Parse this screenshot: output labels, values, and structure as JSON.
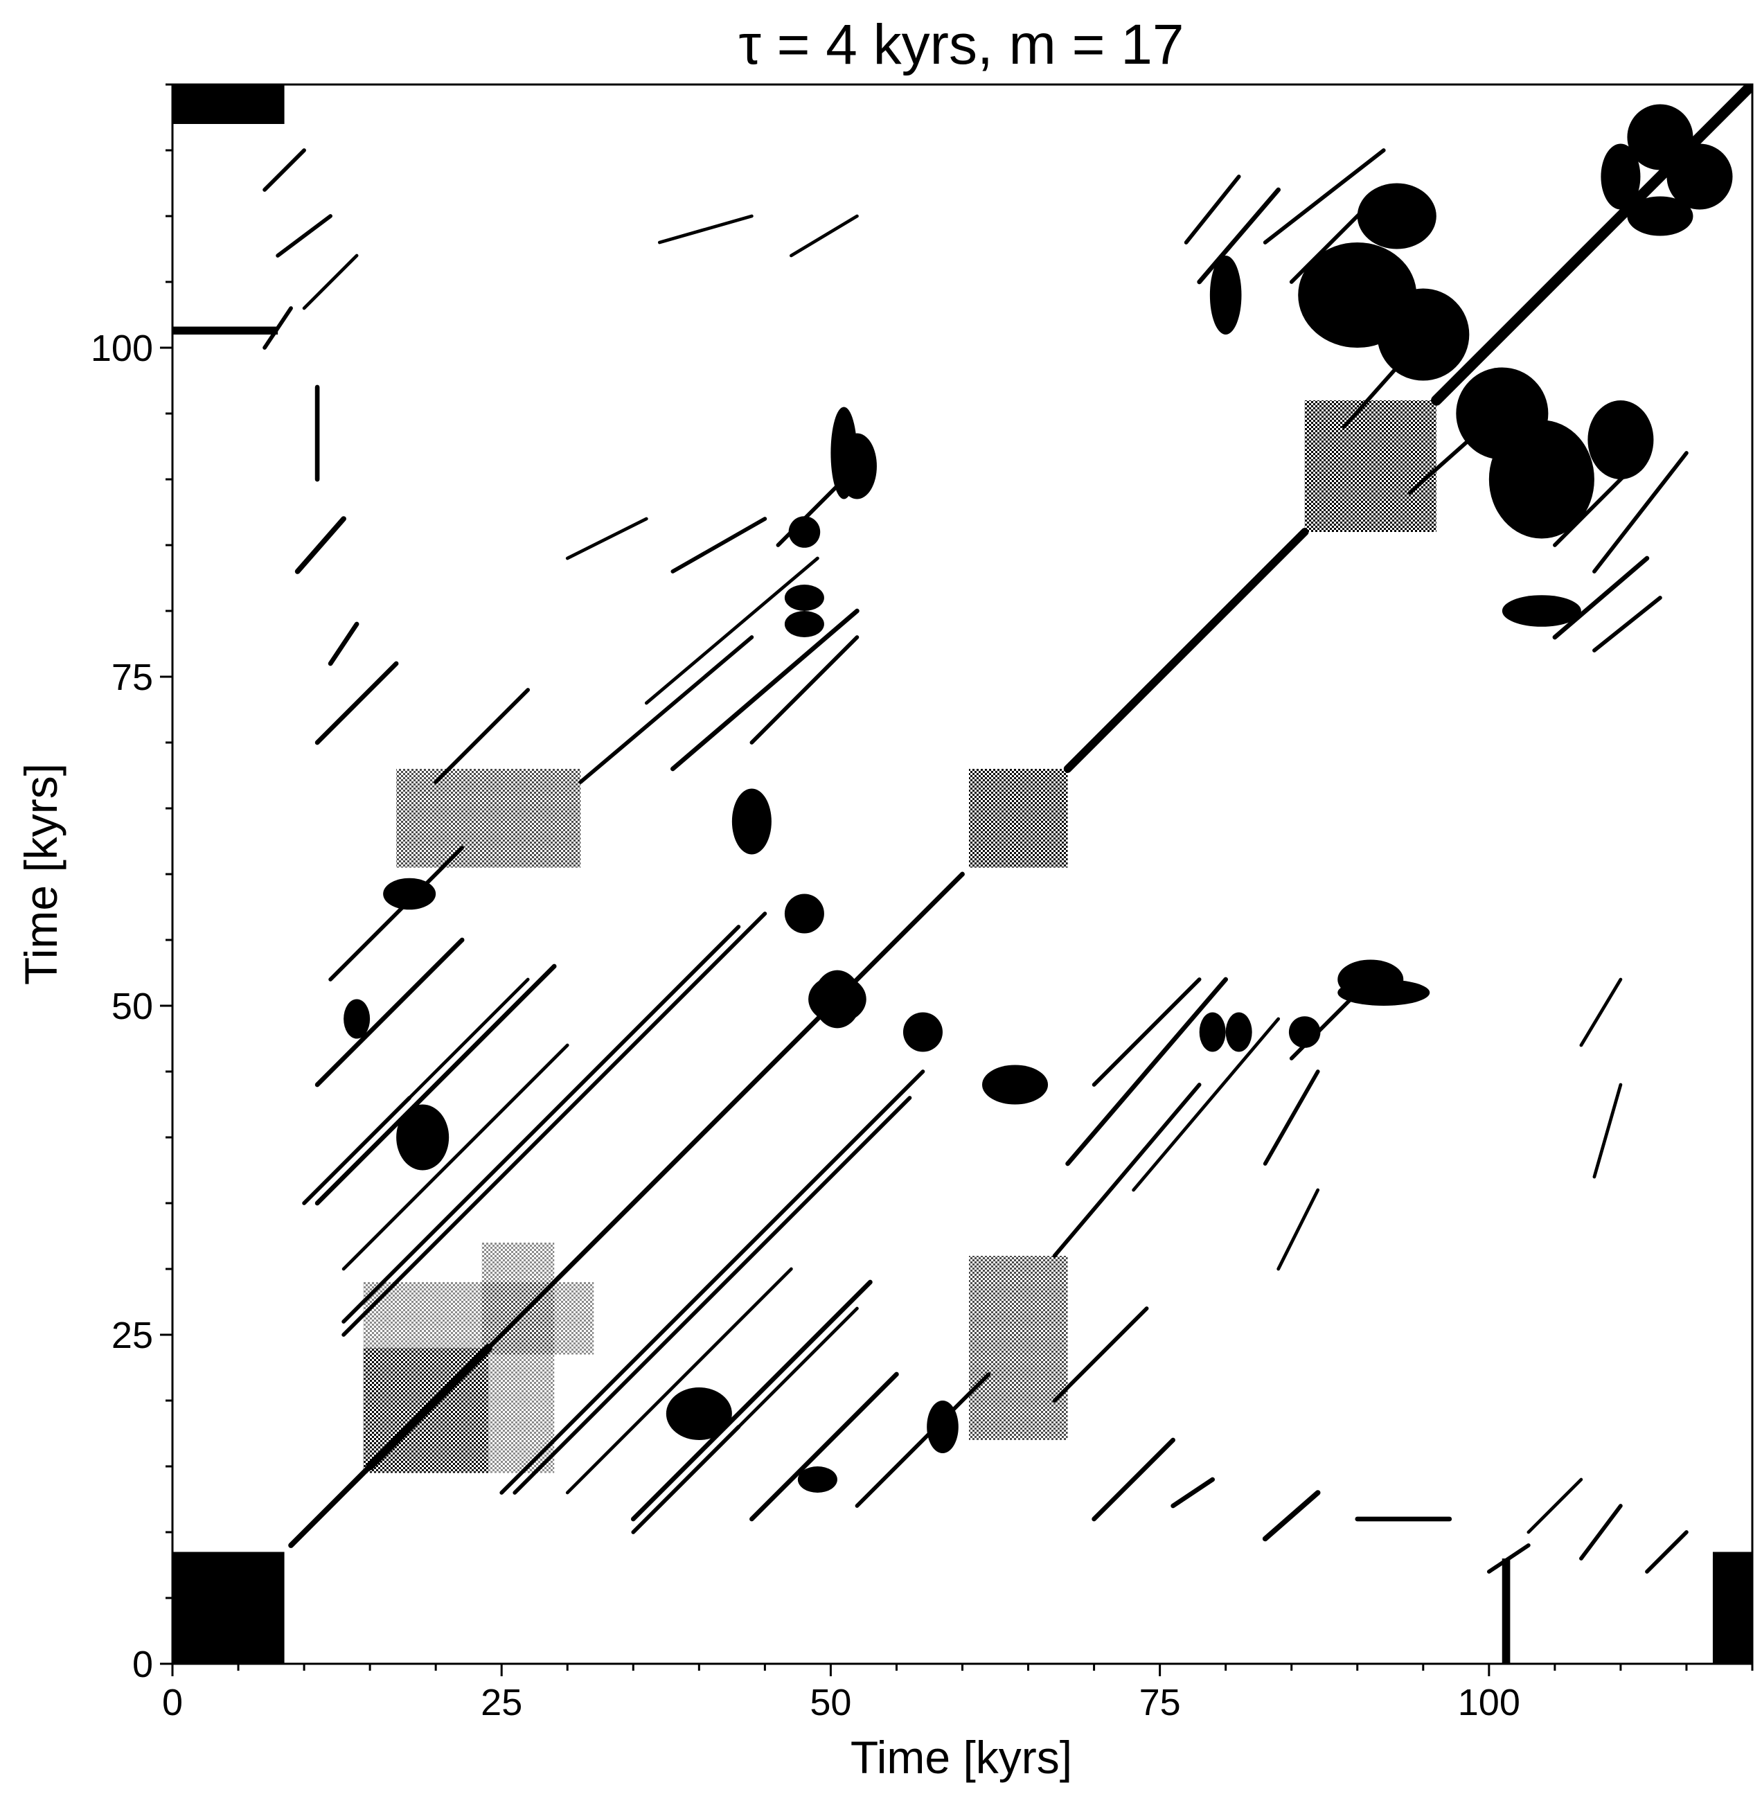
{
  "chart_data": {
    "type": "heatmap",
    "subtype": "recurrence-plot",
    "title": "τ = 4 kyrs, m = 17",
    "xlabel": "Time [kyrs]",
    "ylabel": "Time [kyrs]",
    "xlim": [
      0,
      120
    ],
    "ylim": [
      0,
      120
    ],
    "x_ticks": [
      0,
      25,
      50,
      75,
      100
    ],
    "y_ticks": [
      0,
      25,
      50,
      75,
      100
    ],
    "x_tick_labels": [
      "0",
      "25",
      "50",
      "75",
      "100"
    ],
    "y_tick_labels": [
      "0",
      "25",
      "50",
      "75",
      "100"
    ],
    "minor_tick_step": 5,
    "grid": false,
    "colormap": "binary",
    "colors": {
      "recurrence": "#000000",
      "background": "#ffffff"
    },
    "symmetric": true,
    "recurrent_blocks": [
      {
        "x": [
          0,
          8.5
        ],
        "y": [
          0,
          8.5
        ]
      },
      {
        "x": [
          14.5,
          24
        ],
        "y": [
          14.5,
          24
        ],
        "density": 0.85
      },
      {
        "x": [
          23.5,
          29
        ],
        "y": [
          14.5,
          32
        ],
        "density": 0.35
      },
      {
        "x": [
          60.5,
          68
        ],
        "y": [
          60.5,
          68
        ],
        "density": 0.85
      },
      {
        "x": [
          60.5,
          68
        ],
        "y": [
          17,
          31
        ],
        "density": 0.6
      },
      {
        "x": [
          86,
          96
        ],
        "y": [
          86,
          96
        ],
        "density": 0.9
      },
      {
        "x": [
          0,
          8.5
        ],
        "y": [
          117,
          120
        ]
      },
      {
        "x": [
          117,
          120
        ],
        "y": [
          0,
          8
        ]
      },
      {
        "x": [
          101,
          101.6
        ],
        "y": [
          0,
          8
        ]
      },
      {
        "x": [
          101,
          101.6
        ],
        "y": [
          0,
          8
        ],
        "mirror": true
      }
    ],
    "recurrent_blobs": [
      {
        "x": 50.5,
        "y": 50.5,
        "rx": 2.2,
        "ry": 1.8
      },
      {
        "x": 51,
        "y": 92,
        "rx": 1.0,
        "ry": 3.5
      },
      {
        "x": 90,
        "y": 104,
        "rx": 4.5,
        "ry": 4.0
      },
      {
        "x": 95,
        "y": 101,
        "rx": 3.5,
        "ry": 3.5
      },
      {
        "x": 93,
        "y": 110,
        "rx": 3.0,
        "ry": 2.5
      },
      {
        "x": 116,
        "y": 113,
        "rx": 2.5,
        "ry": 2.5
      },
      {
        "x": 110,
        "y": 113,
        "rx": 1.5,
        "ry": 2.5
      },
      {
        "x": 91,
        "y": 52,
        "rx": 2.5,
        "ry": 1.5
      },
      {
        "x": 18,
        "y": 58.5,
        "rx": 2.0,
        "ry": 1.2
      },
      {
        "x": 19,
        "y": 40,
        "rx": 2.0,
        "ry": 2.5
      },
      {
        "x": 64,
        "y": 44,
        "rx": 2.5,
        "ry": 1.5
      },
      {
        "x": 49,
        "y": 14,
        "rx": 1.5,
        "ry": 1.0
      },
      {
        "x": 48,
        "y": 57,
        "rx": 1.5,
        "ry": 1.5
      },
      {
        "x": 48,
        "y": 79,
        "rx": 1.5,
        "ry": 1.0
      },
      {
        "x": 48,
        "y": 86,
        "rx": 1.2,
        "ry": 1.2
      },
      {
        "x": 81,
        "y": 48,
        "rx": 1.0,
        "ry": 1.5
      },
      {
        "x": 104,
        "y": 80,
        "rx": 3.0,
        "ry": 1.2
      }
    ],
    "diagonal_streaks": [
      {
        "from": [
          9,
          9
        ],
        "to": [
          15,
          15
        ],
        "width": 0.4
      },
      {
        "from": [
          15,
          15
        ],
        "to": [
          24,
          24
        ],
        "width": 0.6
      },
      {
        "from": [
          24,
          24
        ],
        "to": [
          60,
          60
        ],
        "width": 0.35
      },
      {
        "from": [
          68,
          68
        ],
        "to": [
          86,
          86
        ],
        "width": 0.6
      },
      {
        "from": [
          96,
          96
        ],
        "to": [
          120,
          120
        ],
        "width": 0.8
      },
      {
        "from": [
          11,
          35
        ],
        "to": [
          29,
          53
        ],
        "width": 0.35
      },
      {
        "from": [
          11,
          44
        ],
        "to": [
          22,
          55
        ],
        "width": 0.35
      },
      {
        "from": [
          12,
          52
        ],
        "to": [
          22,
          62
        ],
        "width": 0.3
      },
      {
        "from": [
          13,
          26
        ],
        "to": [
          43,
          56
        ],
        "width": 0.3
      },
      {
        "from": [
          25,
          13
        ],
        "to": [
          57,
          45
        ],
        "width": 0.3
      },
      {
        "from": [
          30,
          13
        ],
        "to": [
          47,
          30
        ],
        "width": 0.25
      },
      {
        "from": [
          35,
          10
        ],
        "to": [
          43,
          18
        ],
        "width": 0.3
      },
      {
        "from": [
          40,
          15
        ],
        "to": [
          52,
          27
        ],
        "width": 0.25
      },
      {
        "from": [
          11,
          70
        ],
        "to": [
          17,
          76
        ],
        "width": 0.35
      },
      {
        "from": [
          20,
          67
        ],
        "to": [
          27,
          74
        ],
        "width": 0.3
      },
      {
        "from": [
          31,
          67
        ],
        "to": [
          44,
          78
        ],
        "width": 0.3
      },
      {
        "from": [
          38,
          68
        ],
        "to": [
          52,
          80
        ],
        "width": 0.35
      },
      {
        "from": [
          44,
          70
        ],
        "to": [
          52,
          78
        ],
        "width": 0.3
      },
      {
        "from": [
          36,
          73
        ],
        "to": [
          49,
          84
        ],
        "width": 0.25
      },
      {
        "from": [
          10,
          103
        ],
        "to": [
          14,
          107
        ],
        "width": 0.25
      },
      {
        "from": [
          78,
          105
        ],
        "to": [
          84,
          112
        ],
        "width": 0.35
      },
      {
        "from": [
          83,
          108
        ],
        "to": [
          92,
          115
        ],
        "width": 0.3
      },
      {
        "from": [
          94,
          89
        ],
        "to": [
          103,
          97
        ],
        "width": 0.3
      },
      {
        "from": [
          105,
          85
        ],
        "to": [
          111,
          91
        ],
        "width": 0.3
      },
      {
        "from": [
          108,
          77
        ],
        "to": [
          113,
          81
        ],
        "width": 0.3
      },
      {
        "from": [
          76,
          12
        ],
        "to": [
          79,
          14
        ],
        "width": 0.35
      },
      {
        "from": [
          83,
          9.5
        ],
        "to": [
          87,
          13
        ],
        "width": 0.4
      },
      {
        "from": [
          90,
          11
        ],
        "to": [
          97,
          11
        ],
        "width": 0.35
      },
      {
        "from": [
          100,
          7
        ],
        "to": [
          103,
          9
        ],
        "width": 0.3
      },
      {
        "from": [
          107,
          8
        ],
        "to": [
          110,
          12
        ],
        "width": 0.3
      },
      {
        "from": [
          112,
          7
        ],
        "to": [
          115,
          10
        ],
        "width": 0.3
      },
      {
        "from": [
          83,
          38
        ],
        "to": [
          87,
          45
        ],
        "width": 0.3
      },
      {
        "from": [
          85,
          46
        ],
        "to": [
          91,
          52
        ],
        "width": 0.3
      },
      {
        "from": [
          84,
          30
        ],
        "to": [
          87,
          36
        ],
        "width": 0.25
      },
      {
        "from": [
          107,
          47
        ],
        "to": [
          110,
          52
        ],
        "width": 0.25
      },
      {
        "from": [
          108,
          37
        ],
        "to": [
          110,
          44
        ],
        "width": 0.25
      }
    ]
  }
}
